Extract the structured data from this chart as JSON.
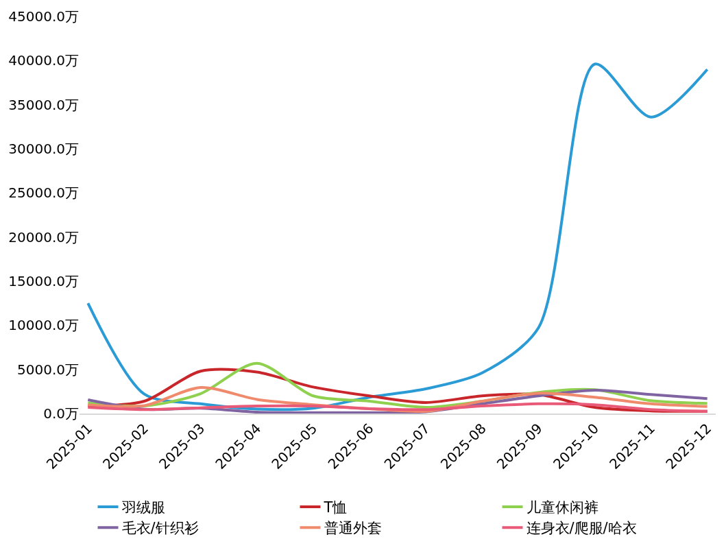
{
  "chart_data": {
    "type": "line",
    "categories": [
      "2025-01",
      "2025-02",
      "2025-03",
      "2025-04",
      "2025-05",
      "2025-06",
      "2025-07",
      "2025-08",
      "2025-09",
      "2025-10",
      "2025-11",
      "2025-12"
    ],
    "series": [
      {
        "name": "羽绒服",
        "color": "#2b9bd6",
        "values": [
          12500,
          2200,
          1100,
          500,
          600,
          1850,
          2800,
          4600,
          9700,
          39600,
          33600,
          39000
        ]
      },
      {
        "name": "T恤",
        "color": "#c8262b",
        "values": [
          850,
          1400,
          4800,
          4700,
          3000,
          2000,
          1250,
          2000,
          2150,
          700,
          300,
          250
        ]
      },
      {
        "name": "儿童休闲裤",
        "color": "#8fd14f",
        "values": [
          1200,
          850,
          2250,
          5700,
          2000,
          1400,
          700,
          1400,
          2400,
          2700,
          1450,
          1150
        ]
      },
      {
        "name": "毛衣/针织衫",
        "color": "#8064a2",
        "values": [
          1550,
          480,
          600,
          150,
          100,
          100,
          200,
          1100,
          2000,
          2650,
          2150,
          1700
        ]
      },
      {
        "name": "普通外套",
        "color": "#f08a6c",
        "values": [
          1000,
          900,
          2950,
          1600,
          1000,
          550,
          250,
          1400,
          2300,
          1850,
          1100,
          800
        ]
      },
      {
        "name": "连身衣/爬服/哈衣",
        "color": "#e85a78",
        "values": [
          700,
          450,
          650,
          850,
          850,
          550,
          450,
          850,
          1100,
          1000,
          450,
          250
        ]
      }
    ],
    "ylim": [
      0,
      45000
    ],
    "yticks": [
      {
        "value": 0,
        "label": "0.0万"
      },
      {
        "value": 5000,
        "label": "5000.0万"
      },
      {
        "value": 10000,
        "label": "10000.0万"
      },
      {
        "value": 15000,
        "label": "15000.0万"
      },
      {
        "value": 20000,
        "label": "20000.0万"
      },
      {
        "value": 25000,
        "label": "25000.0万"
      },
      {
        "value": 30000,
        "label": "30000.0万"
      },
      {
        "value": 35000,
        "label": "35000.0万"
      },
      {
        "value": 40000,
        "label": "40000.0万"
      },
      {
        "value": 45000,
        "label": "45000.0万"
      }
    ],
    "legend": "bottom",
    "marker": "none",
    "line_style": "solid"
  }
}
